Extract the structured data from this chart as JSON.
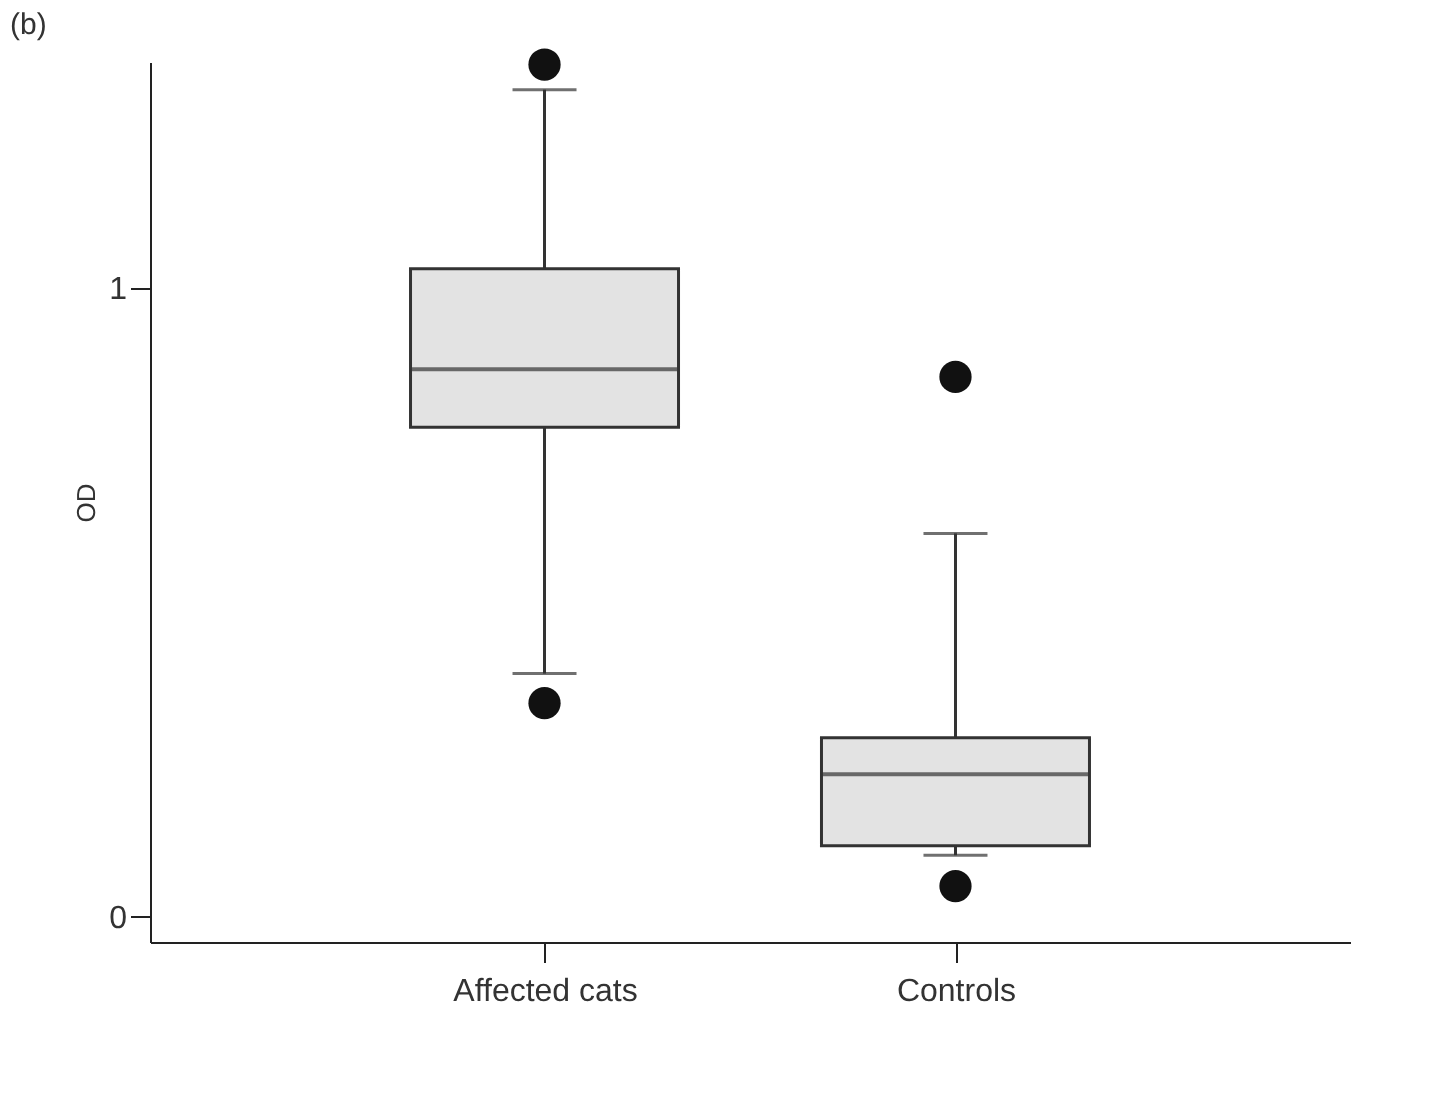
{
  "chart_data": {
    "type": "box",
    "title": "(b)",
    "ylabel": "OD",
    "categories": [
      "Affected cats",
      "Controls"
    ],
    "boxes": [
      {
        "low": 0.387,
        "q1": 0.779,
        "median": 0.871,
        "q3": 1.031,
        "high": 1.316,
        "outliers": [
          1.356,
          0.34
        ]
      },
      {
        "low": 0.098,
        "q1": 0.113,
        "median": 0.227,
        "q3": 0.285,
        "high": 0.61,
        "outliers": [
          0.859,
          0.049
        ]
      }
    ],
    "color": "#e3e3e3",
    "ylim": [
      -0.04,
      1.36
    ],
    "yticks": [
      0,
      1
    ],
    "grid": false
  }
}
